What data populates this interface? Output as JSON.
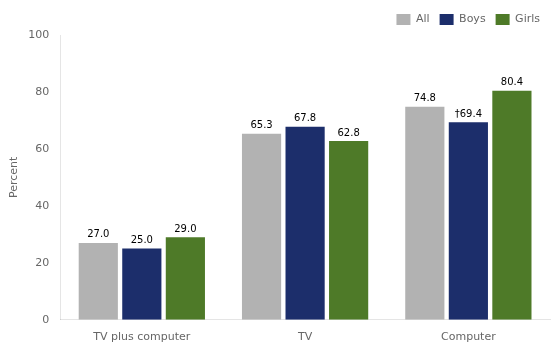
{
  "chart_data": {
    "type": "bar",
    "categories": [
      "TV plus computer",
      "TV",
      "Computer"
    ],
    "series": [
      {
        "name": "All",
        "color": "#b2b2b2",
        "values": [
          27.0,
          65.3,
          74.8
        ],
        "value_labels": [
          "27.0",
          "65.3",
          "74.8"
        ]
      },
      {
        "name": "Boys",
        "color": "#1c2e6b",
        "values": [
          25.0,
          67.8,
          69.4
        ],
        "value_labels": [
          "25.0",
          "67.8",
          "†69.4"
        ]
      },
      {
        "name": "Girls",
        "color": "#4e7a28",
        "values": [
          29.0,
          62.8,
          80.4
        ],
        "value_labels": [
          "29.0",
          "62.8",
          "80.4"
        ]
      }
    ],
    "ylabel": "Percent",
    "ylim": [
      0,
      100
    ],
    "yticks": [
      0,
      20,
      40,
      60,
      80,
      100
    ],
    "grid": false,
    "legend": "upper right",
    "data_labels": true
  }
}
